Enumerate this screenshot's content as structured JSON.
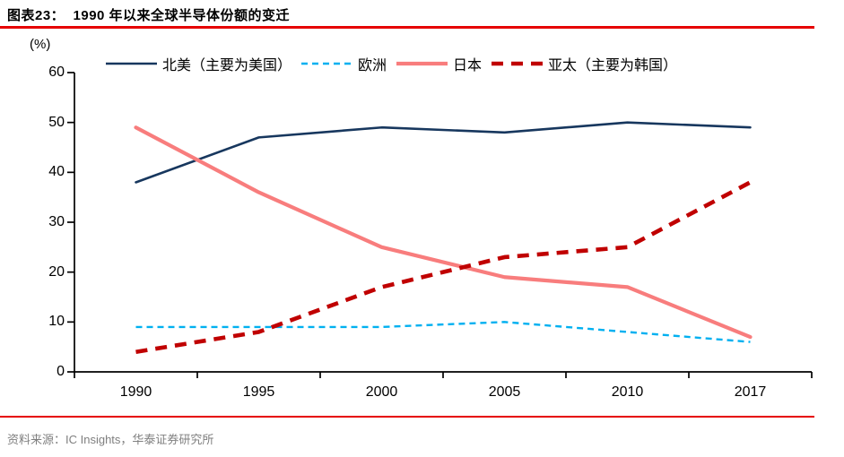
{
  "header": {
    "title": "图表23：  1990 年以来全球半导体份额的变迁"
  },
  "footer": {
    "source": "资料来源：IC Insights，华泰证券研究所"
  },
  "colors": {
    "rule_red": "#e60000",
    "axis": "#000000",
    "source_text": "#7f7f7f"
  },
  "chart_data": {
    "type": "line",
    "title": "1990 年以来全球半导体份额的变迁",
    "unit_label": "(%)",
    "categories": [
      "1990",
      "1995",
      "2000",
      "2005",
      "2010",
      "2017"
    ],
    "series": [
      {
        "key": "north-america",
        "name": "北美（主要为美国）",
        "values": [
          38,
          47,
          49,
          48,
          50,
          49
        ],
        "color": "#17375e",
        "dash": null,
        "width": 2.6
      },
      {
        "key": "europe",
        "name": "欧洲",
        "values": [
          9,
          9,
          9,
          10,
          8,
          6
        ],
        "color": "#00b0f0",
        "dash": "7 5",
        "width": 2.4
      },
      {
        "key": "japan",
        "name": "日本",
        "values": [
          49,
          36,
          25,
          19,
          17,
          7
        ],
        "color": "#f87d7d",
        "dash": null,
        "width": 4.2
      },
      {
        "key": "asia-pacific",
        "name": "亚太（主要为韩国）",
        "values": [
          4,
          8,
          17,
          23,
          25,
          38
        ],
        "color": "#c00000",
        "dash": "13 9",
        "width": 4.6
      }
    ],
    "ylim": [
      0,
      60
    ],
    "ytick_step": 10,
    "grid": false,
    "legend_position": "top"
  }
}
